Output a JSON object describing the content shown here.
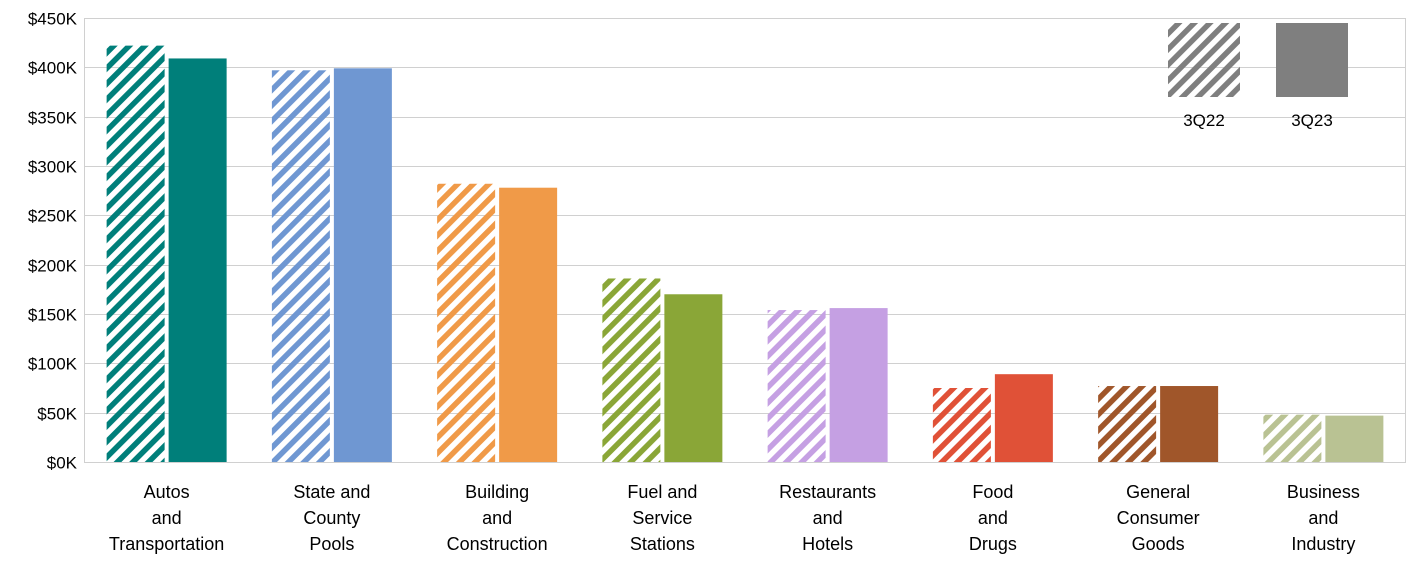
{
  "chart_data": {
    "type": "bar",
    "categories": [
      [
        "Autos",
        "and",
        "Transportation"
      ],
      [
        "State and",
        "County",
        "Pools"
      ],
      [
        "Building",
        "and",
        "Construction"
      ],
      [
        "Fuel and",
        "Service",
        "Stations"
      ],
      [
        "Restaurants",
        "and",
        "Hotels"
      ],
      [
        "Food",
        "and",
        "Drugs"
      ],
      [
        "General",
        "Consumer",
        "Goods"
      ],
      [
        "Business",
        "and",
        "Industry"
      ]
    ],
    "category_colors": [
      "#007f7a",
      "#6f97d2",
      "#f09a48",
      "#8aa637",
      "#c5a0e3",
      "#e05137",
      "#a0562a",
      "#b9c293"
    ],
    "series": [
      {
        "name": "3Q22",
        "style": "hatched",
        "values": [
          422000,
          397000,
          282000,
          186000,
          154000,
          75000,
          77000,
          48000
        ]
      },
      {
        "name": "3Q23",
        "style": "solid",
        "values": [
          409000,
          399000,
          278000,
          170000,
          156000,
          89000,
          77000,
          47000
        ]
      }
    ],
    "yticks": [
      "$0K",
      "$50K",
      "$100K",
      "$150K",
      "$200K",
      "$250K",
      "$300K",
      "$350K",
      "$400K",
      "$450K"
    ],
    "ylim": [
      0,
      450000
    ],
    "grid": true,
    "legend": {
      "placement": "top-right",
      "swatch_color": "#7f7f7f"
    },
    "title": "",
    "xlabel": "",
    "ylabel": ""
  }
}
